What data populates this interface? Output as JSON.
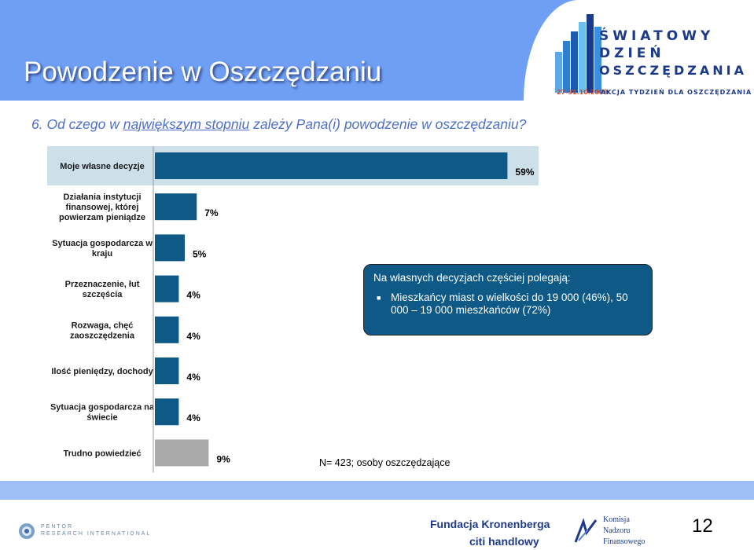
{
  "header": {
    "title": "Powodzenie w Oszczędzaniu"
  },
  "logo": {
    "line1": "ŚWIATOWY",
    "line2": "DZIEŃ",
    "line3": "OSZCZĘDZANIA",
    "date": "27-31.10.2008",
    "subline": "AKCJA TYDZIEŃ DLA OSZCZĘDZANIA"
  },
  "question": {
    "prefix": "6. Od czego w ",
    "underlined": "największym stopniu",
    "suffix": " zależy Pana(i) powodzenie w oszczędzaniu?"
  },
  "chart_data": {
    "type": "bar",
    "orientation": "horizontal",
    "categories": [
      "Moje własne decyzje",
      "Działania instytucji finansowej, której powierzam pieniądze",
      "Sytuacja gospodarcza w kraju",
      "Przeznaczenie, łut szczęścia",
      "Rozwaga, chęć zaoszczędzenia",
      "Ilość pieniędzy, dochody",
      "Sytuacja gospodarcza na świecie",
      "Trudno powiedzieć"
    ],
    "category_lines": [
      [
        "Moje własne decyzje"
      ],
      [
        "Działania instytucji",
        "finansowej, której",
        "powierzam pieniądze"
      ],
      [
        "Sytuacja gospodarcza w",
        "kraju"
      ],
      [
        "Przeznaczenie, łut",
        "szczęścia"
      ],
      [
        "Rozwaga, chęć",
        "zaoszczędzenia"
      ],
      [
        "Ilość pieniędzy, dochody"
      ],
      [
        "Sytuacja gospodarcza na",
        "świecie"
      ],
      [
        "Trudno powiedzieć"
      ]
    ],
    "values": [
      59,
      7,
      5,
      4,
      4,
      4,
      4,
      9
    ],
    "value_labels": [
      "59%",
      "7%",
      "5%",
      "4%",
      "4%",
      "4%",
      "4%",
      "9%"
    ],
    "unit": "%",
    "highlight_index": 0,
    "colors": {
      "bar": "#0e5985",
      "bar_other": "#aaaaaa",
      "highlight_bg": "#cde0ea"
    }
  },
  "callout": {
    "title": "Na własnych decyzjach częściej polegają:",
    "bullet_icon": "square-bullet",
    "bullet": "Mieszkańcy miast o wielkości do 19 000 (46%), 50 000 – 19 000 mieszkańców (72%)"
  },
  "note": "N= 423; osoby oszczędzające",
  "footer": {
    "pentor_line1": "PENTOR",
    "pentor_line2": "RESEARCH INTERNATIONAL",
    "kronenberg": "Fundacja Kronenberga",
    "citi": "citi handlowy",
    "knf_line1": "Komisja",
    "knf_line2": "Nadzoru",
    "knf_line3": "Finansowego",
    "page_number": "12"
  }
}
